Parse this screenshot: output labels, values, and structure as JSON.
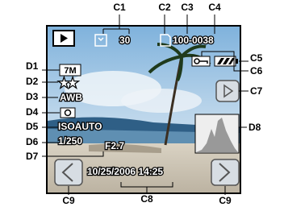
{
  "callouts": {
    "top": [
      "C1",
      "C2",
      "C3",
      "C4"
    ],
    "left": [
      "D1",
      "D2",
      "D3",
      "D4",
      "D5",
      "D6",
      "D7"
    ],
    "right": [
      "C5",
      "C6",
      "C7",
      "D8"
    ],
    "bottom": [
      "C9",
      "C8",
      "C9"
    ]
  },
  "screen": {
    "image_count": "30",
    "file_number": "100-0038",
    "recorded_pixels": "7M",
    "quality": "★★",
    "white_balance": "AWB",
    "iso": "ISOAUTO",
    "shutter": "1/250",
    "aperture": "F2.7",
    "datetime": "10/25/2006 14:25"
  }
}
